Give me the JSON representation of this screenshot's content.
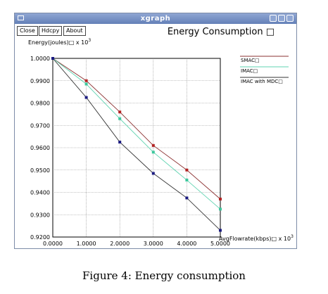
{
  "window": {
    "title": "xgraph",
    "buttons": {
      "close": "Close",
      "hdcpy": "Hdcpy",
      "about": "About"
    }
  },
  "chart_data": {
    "type": "line",
    "title": "Energy Consumption □",
    "ylabel": "Energy(joules)□ x 10",
    "ylabel_exp": "3",
    "xlabel": "AvgFlowrate(kbps)□ x 10",
    "xlabel_exp": "3",
    "xlim": [
      0,
      5
    ],
    "ylim": [
      0.92,
      1.0
    ],
    "grid": true,
    "legend_position": "right",
    "x_ticks": [
      0,
      1,
      2,
      3,
      4,
      5
    ],
    "x_tick_labels": [
      "0.0000",
      "1.0000",
      "2.0000",
      "3.0000",
      "4.0000",
      "5.0000"
    ],
    "y_ticks": [
      0.92,
      0.93,
      0.94,
      0.95,
      0.96,
      0.97,
      0.98,
      0.99,
      1.0
    ],
    "y_tick_labels": [
      "0.9200",
      "0.9300",
      "0.9400",
      "0.9500",
      "0.9600",
      "0.9700",
      "0.9800",
      "0.9900",
      "1.0000"
    ],
    "series": [
      {
        "name": "SMAC□",
        "color": "#8b3030",
        "marker_color": "#b22222",
        "x": [
          0,
          1,
          2,
          3,
          4,
          5
        ],
        "y": [
          1.0,
          0.99,
          0.976,
          0.961,
          0.95,
          0.937
        ]
      },
      {
        "name": "IMAC□",
        "color": "#5fd3b0",
        "marker_color": "#3cc79c",
        "x": [
          0,
          1,
          2,
          3,
          4,
          5
        ],
        "y": [
          1.0,
          0.9885,
          0.973,
          0.958,
          0.9455,
          0.9325
        ]
      },
      {
        "name": "IMAC with MDC□",
        "color": "#333333",
        "marker_color": "#1a1a80",
        "x": [
          0,
          1,
          2,
          3,
          4,
          5
        ],
        "y": [
          1.0,
          0.9825,
          0.9625,
          0.9485,
          0.9375,
          0.923
        ]
      }
    ]
  },
  "caption": "Figure 4: Energy consumption"
}
